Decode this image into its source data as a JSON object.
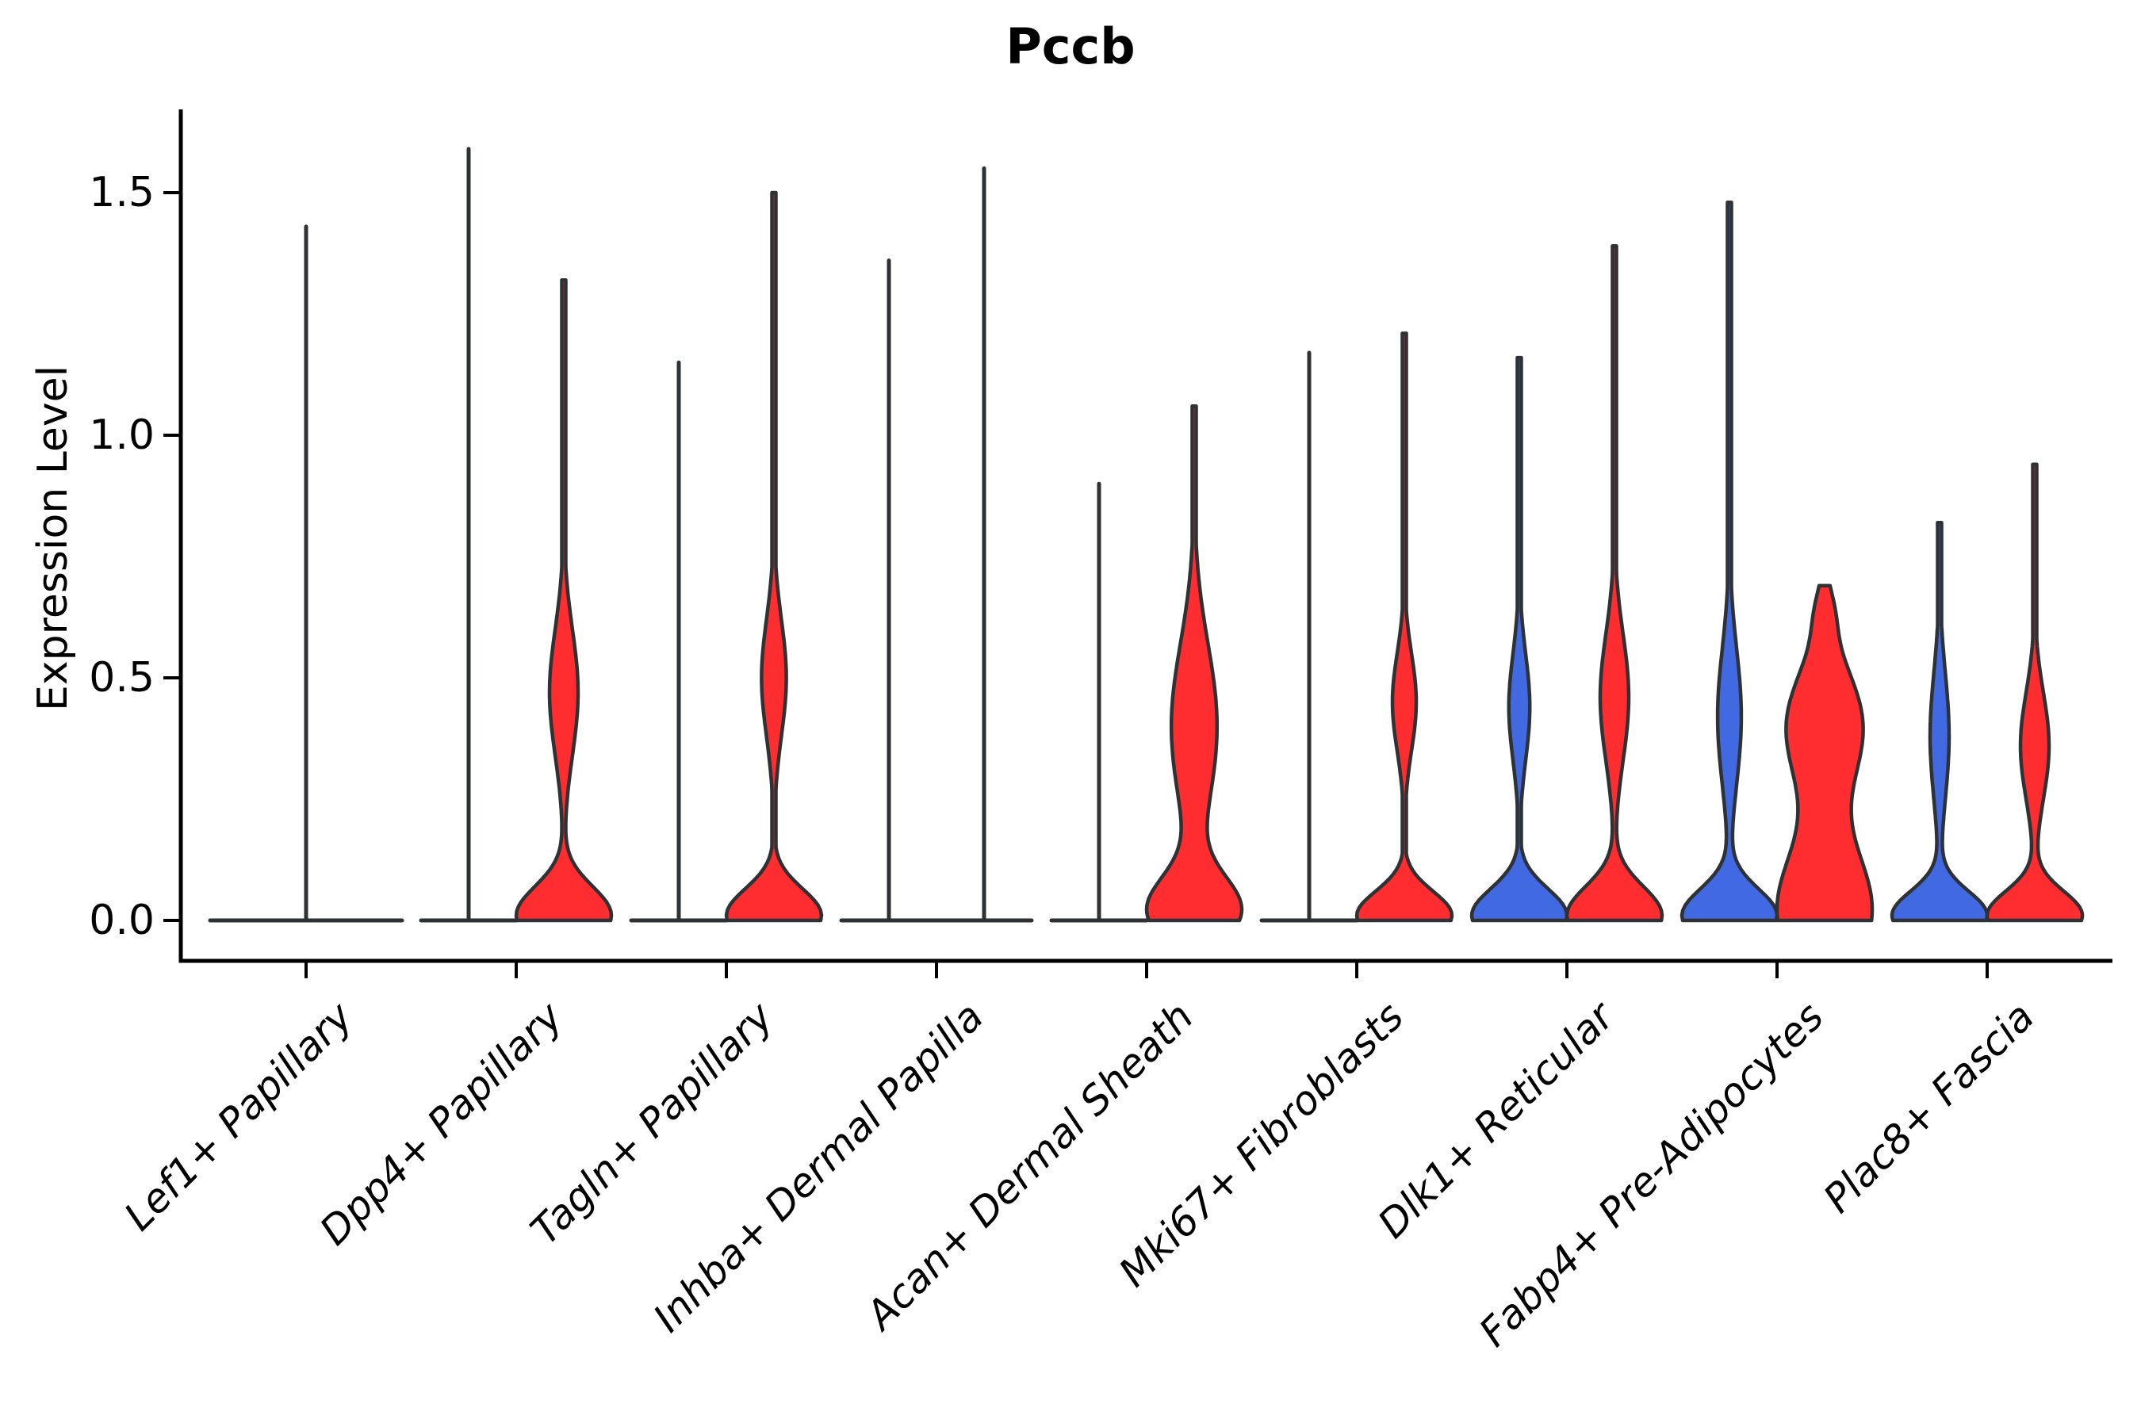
{
  "title": "Pccb",
  "axes": {
    "y_label": "Expression Level",
    "y_ticks": [
      "0.0",
      "0.5",
      "1.0",
      "1.5"
    ],
    "x_categories": [
      "Lef1+ Papillary",
      "Dpp4+ Papillary",
      "Tagln+ Papillary",
      "Inhba+ Dermal Papilla",
      "Acan+ Dermal Sheath",
      "Mki67+ Fibroblasts",
      "Dlk1+ Reticular",
      "Fabp4+ Pre-Adipocytes",
      "Plac8+ Fascia"
    ]
  },
  "colors": {
    "red": "#FF2D2F",
    "blue": "#4169E1",
    "outline": "#2E3235",
    "axis": "#000000"
  },
  "chart_data": {
    "type": "violin",
    "title": "Pccb",
    "xlabel": "",
    "ylabel": "Expression Level",
    "ylim": [
      -0.08,
      1.68
    ],
    "y_tick_values": [
      0.0,
      0.5,
      1.0,
      1.5
    ],
    "grid": false,
    "legend": "none",
    "categories": [
      "Lef1+ Papillary",
      "Dpp4+ Papillary",
      "Tagln+ Papillary",
      "Inhba+ Dermal Papilla",
      "Acan+ Dermal Sheath",
      "Mki67+ Fibroblasts",
      "Dlk1+ Reticular",
      "Fabp4+ Pre-Adipocytes",
      "Plac8+ Fascia"
    ],
    "groups": [
      "group-blue",
      "group-red"
    ],
    "violins": [
      {
        "category": 0,
        "side": "full",
        "style": "line",
        "color": null,
        "max": 1.43,
        "components": []
      },
      {
        "category": 1,
        "side": "left",
        "style": "line",
        "color": null,
        "max": 1.59,
        "components": []
      },
      {
        "category": 1,
        "side": "right",
        "style": "fill",
        "color": "red",
        "max": 1.32,
        "components": [
          {
            "mu": 0.01,
            "s": 0.06,
            "w": 1.0
          },
          {
            "mu": 0.47,
            "s": 0.13,
            "w": 0.3
          }
        ]
      },
      {
        "category": 2,
        "side": "left",
        "style": "line",
        "color": null,
        "max": 1.15,
        "components": []
      },
      {
        "category": 2,
        "side": "right",
        "style": "fill",
        "color": "red",
        "max": 1.5,
        "components": [
          {
            "mu": 0.01,
            "s": 0.055,
            "w": 1.0
          },
          {
            "mu": 0.5,
            "s": 0.12,
            "w": 0.26
          }
        ]
      },
      {
        "category": 3,
        "side": "left",
        "style": "line",
        "color": null,
        "max": 1.36,
        "components": []
      },
      {
        "category": 3,
        "side": "right",
        "style": "line",
        "color": null,
        "max": 1.55,
        "components": []
      },
      {
        "category": 4,
        "side": "left",
        "style": "line",
        "color": null,
        "max": 0.9,
        "components": []
      },
      {
        "category": 4,
        "side": "right",
        "style": "fill",
        "color": "red",
        "max": 1.06,
        "components": [
          {
            "mu": 0.02,
            "s": 0.07,
            "w": 1.0
          },
          {
            "mu": 0.4,
            "s": 0.17,
            "w": 0.5
          }
        ]
      },
      {
        "category": 5,
        "side": "left",
        "style": "line",
        "color": null,
        "max": 1.17,
        "components": []
      },
      {
        "category": 5,
        "side": "right",
        "style": "fill",
        "color": "red",
        "max": 1.21,
        "components": [
          {
            "mu": 0.01,
            "s": 0.05,
            "w": 1.0
          },
          {
            "mu": 0.45,
            "s": 0.1,
            "w": 0.25
          }
        ]
      },
      {
        "category": 6,
        "side": "left",
        "style": "fill",
        "color": "blue",
        "max": 1.16,
        "components": [
          {
            "mu": 0.01,
            "s": 0.055,
            "w": 1.0
          },
          {
            "mu": 0.44,
            "s": 0.11,
            "w": 0.22
          }
        ]
      },
      {
        "category": 6,
        "side": "right",
        "style": "fill",
        "color": "red",
        "max": 1.39,
        "components": [
          {
            "mu": 0.01,
            "s": 0.06,
            "w": 1.0
          },
          {
            "mu": 0.46,
            "s": 0.13,
            "w": 0.3
          }
        ]
      },
      {
        "category": 7,
        "side": "left",
        "style": "fill",
        "color": "blue",
        "max": 1.48,
        "components": [
          {
            "mu": 0.01,
            "s": 0.055,
            "w": 1.0
          },
          {
            "mu": 0.42,
            "s": 0.14,
            "w": 0.25
          }
        ]
      },
      {
        "category": 7,
        "side": "right",
        "style": "fill",
        "color": "red",
        "max": 0.69,
        "components": [
          {
            "mu": 0.02,
            "s": 0.13,
            "w": 1.0
          },
          {
            "mu": 0.4,
            "s": 0.12,
            "w": 0.8
          },
          {
            "mu": 0.64,
            "s": 0.05,
            "w": 0.12
          }
        ]
      },
      {
        "category": 8,
        "side": "left",
        "style": "fill",
        "color": "blue",
        "max": 0.82,
        "components": [
          {
            "mu": 0.01,
            "s": 0.05,
            "w": 1.0
          },
          {
            "mu": 0.38,
            "s": 0.13,
            "w": 0.2
          }
        ]
      },
      {
        "category": 8,
        "side": "right",
        "style": "fill",
        "color": "red",
        "max": 0.94,
        "components": [
          {
            "mu": 0.01,
            "s": 0.05,
            "w": 1.0
          },
          {
            "mu": 0.36,
            "s": 0.11,
            "w": 0.3
          }
        ]
      }
    ]
  },
  "layout_note_values": {
    "spike_maxima_by_category": {
      "Lef1+ Papillary": [
        1.43
      ],
      "Dpp4+ Papillary": [
        1.59,
        1.32
      ],
      "Tagln+ Papillary": [
        1.15,
        1.5
      ],
      "Inhba+ Dermal Papilla": [
        1.36,
        1.55
      ],
      "Acan+ Dermal Sheath": [
        0.9,
        1.06
      ],
      "Mki67+ Fibroblasts": [
        1.17,
        1.21
      ],
      "Dlk1+ Reticular": [
        1.16,
        1.39
      ],
      "Fabp4+ Pre-Adipocytes": [
        1.48,
        0.69
      ],
      "Plac8+ Fascia": [
        0.82,
        0.94
      ]
    }
  }
}
